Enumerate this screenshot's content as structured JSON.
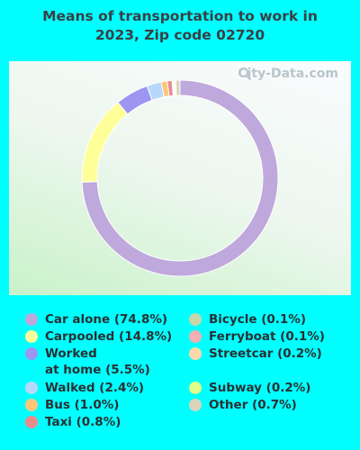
{
  "title_line1": "Means of transportation to work in",
  "title_line2": "2023, Zip code 02720",
  "watermark": "City-Data.com",
  "chart_data": {
    "type": "pie",
    "variant": "donut",
    "title": "Means of transportation to work in 2023, Zip code 02720",
    "legend_placement": "bottom",
    "slices": [
      {
        "label": "Car alone (74.8%)",
        "value": 74.8,
        "color": "#bfa8dc"
      },
      {
        "label": "Carpooled (14.8%)",
        "value": 14.8,
        "color": "#ffff99"
      },
      {
        "label": "Worked\nat home (5.5%)",
        "value": 5.5,
        "color": "#9c96f0"
      },
      {
        "label": "Walked (2.4%)",
        "value": 2.4,
        "color": "#b8d8fb"
      },
      {
        "label": "Bus (1.0%)",
        "value": 1.0,
        "color": "#fcc77a"
      },
      {
        "label": "Taxi (0.8%)",
        "value": 0.8,
        "color": "#ea8c8c"
      },
      {
        "label": "Bicycle (0.1%)",
        "value": 0.1,
        "color": "#c8d6a8"
      },
      {
        "label": "Ferryboat (0.1%)",
        "value": 0.1,
        "color": "#f2b0b0"
      },
      {
        "label": "Streetcar (0.2%)",
        "value": 0.2,
        "color": "#fbd7ab"
      },
      {
        "label": "Subway (0.2%)",
        "value": 0.2,
        "color": "#deff88"
      },
      {
        "label": "Other (0.7%)",
        "value": 0.7,
        "color": "#dbd3bc"
      }
    ]
  }
}
